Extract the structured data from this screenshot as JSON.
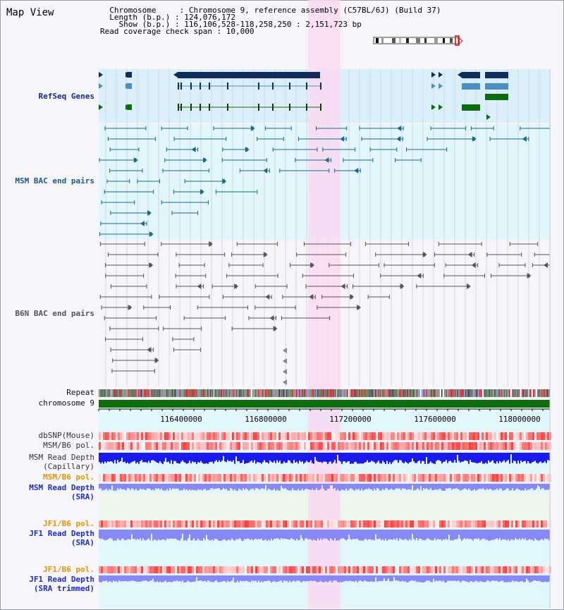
{
  "header": {
    "title": "Map View",
    "info_lines": [
      "  Chromosome     : Chromosome 9, reference assembly (C57BL/6J) (Build 37)",
      "  Length (b.p.) : 124,076,172",
      "    Show (b.p.) : 116,106,528-118,258,250 : 2,151,723 bp",
      "Read coverage check span : 10,000"
    ]
  },
  "tracks": {
    "refseq": "RefSeq Genes",
    "msm_bac": "MSM BAC end pairs",
    "b6n_bac": "B6N BAC end pairs",
    "repeat": "Repeat",
    "chromosome": "chromosome 9",
    "dbsnp": "dbSNP(Mouse)",
    "msm_b6_pol_1": "MSM/B6 pol.",
    "msm_read_depth_cap_1": "MSM Read Depth",
    "msm_read_depth_cap_2": "(Capillary)",
    "msm_b6_pol_2": "MSM/B6 pol.",
    "msm_read_depth_sra_1": "MSM Read Depth",
    "msm_read_depth_sra_2": "(SRA)",
    "jf1_b6_pol_1": "JF1/B6 pol.",
    "jf1_read_depth_sra_1": "JF1 Read Depth",
    "jf1_read_depth_sra_2": "(SRA)",
    "jf1_b6_pol_2": "JF1/B6 pol.",
    "jf1_read_depth_trim_1": "JF1 Read Depth",
    "jf1_read_depth_trim_2": "(SRA trimmed)"
  },
  "axis": {
    "ticks": [
      "116400000",
      "116800000",
      "117200000",
      "117600000",
      "118000000"
    ]
  },
  "colors": {
    "highlight": "#f9d9f2",
    "refseq_bg": "#daeffa",
    "bac_bg": "#e2f7fb",
    "gene_navy": "#0f2d5c",
    "gene_steel": "#4a8fbe",
    "gene_green": "#0a6e0a",
    "msm_bac": "#1a6a8a",
    "b6n_bac": "#555555",
    "chrom": "#0a6e0a",
    "depth_capillary": "#1a1aee",
    "depth_sra": "#8888f8"
  }
}
